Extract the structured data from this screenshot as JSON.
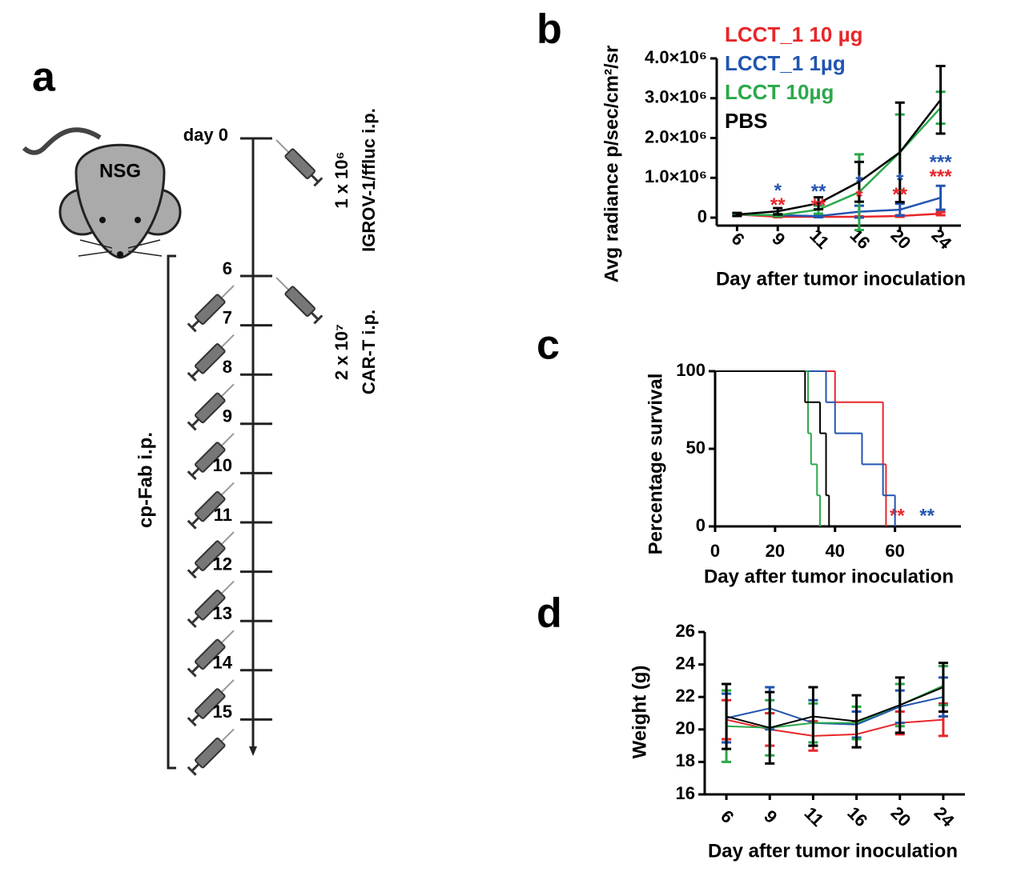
{
  "panel_a": {
    "panel_label": "a",
    "mouse_label": "NSG",
    "start_label": "day 0",
    "days": [
      "6",
      "7",
      "8",
      "9",
      "10",
      "11",
      "12",
      "13",
      "14",
      "15"
    ],
    "tumor_dose": "1 x 10⁶",
    "tumor_text": "IGROV-1/ffluc i.p.",
    "cart_dose": "2 x 10⁷",
    "cart_text": "CAR-T i.p.",
    "fab_text": "cp-Fab i.p."
  },
  "chart_data": [
    {
      "type": "line",
      "panel_label": "b",
      "y_label": "Avg radiance p/sec/cm²/sr",
      "x_label": "Day after tumor inoculation",
      "categories": [
        "6",
        "9",
        "11",
        "16",
        "20",
        "24"
      ],
      "ylim": [
        -200000,
        4000000
      ],
      "yticks": [
        0,
        {
          "value": 1000000,
          "label": "1.0×10⁶"
        },
        {
          "value": 2000000,
          "label": "2.0×10⁶"
        },
        {
          "value": 3000000,
          "label": "3.0×10⁶"
        },
        {
          "value": 4000000,
          "label": "4.0×10⁶"
        }
      ],
      "series": [
        {
          "name": "LCCT_1  10 µg",
          "color": "#e8262a",
          "values": [
            80000,
            20000,
            20000,
            20000,
            40000,
            100000
          ],
          "errors": [
            20000,
            10000,
            10000,
            10000,
            20000,
            40000
          ],
          "significance": [
            null,
            "**",
            "**",
            "*",
            "**",
            "***"
          ]
        },
        {
          "name": "LCCT_1  1µg",
          "color": "#2255b0",
          "values": [
            80000,
            60000,
            40000,
            150000,
            200000,
            500000
          ],
          "errors": [
            30000,
            30000,
            30000,
            150000,
            150000,
            300000
          ],
          "significance": [
            null,
            "*",
            "**",
            "*",
            "*",
            "***"
          ]
        },
        {
          "name": "LCCT 10µg",
          "color": "#2aa84a",
          "values": [
            80000,
            60000,
            200000,
            640000,
            1640000,
            2760000
          ],
          "errors": [
            30000,
            30000,
            100000,
            950000,
            950000,
            400000
          ]
        },
        {
          "name": "PBS",
          "color": "#000000",
          "values": [
            80000,
            160000,
            360000,
            900000,
            1640000,
            2960000
          ],
          "errors": [
            40000,
            80000,
            150000,
            500000,
            1250000,
            850000
          ]
        }
      ]
    },
    {
      "type": "step",
      "panel_label": "c",
      "y_label": "Percentage survival",
      "x_label": "Day after tumor inoculation",
      "xlim": [
        0,
        82
      ],
      "xticks": [
        0,
        20,
        40,
        60
      ],
      "ylim": [
        0,
        100
      ],
      "yticks": [
        0,
        50,
        100
      ],
      "series": [
        {
          "color": "#e8262a",
          "x": [
            0,
            40,
            56,
            57
          ],
          "values": [
            100,
            80,
            40,
            0
          ],
          "significance": "**"
        },
        {
          "color": "#2255b0",
          "x": [
            0,
            37,
            40,
            49,
            56,
            60
          ],
          "values": [
            100,
            80,
            60,
            40,
            20,
            0
          ],
          "significance": "**"
        },
        {
          "color": "#2aa84a",
          "x": [
            0,
            31,
            32,
            34,
            35
          ],
          "values": [
            100,
            60,
            40,
            20,
            0
          ]
        },
        {
          "color": "#000000",
          "x": [
            0,
            30,
            35,
            37,
            38
          ],
          "values": [
            100,
            80,
            60,
            20,
            0
          ]
        }
      ]
    },
    {
      "type": "line",
      "panel_label": "d",
      "y_label": "Weight (g)",
      "x_label": "Day after tumor inoculation",
      "categories": [
        "6",
        "9",
        "11",
        "16",
        "20",
        "24"
      ],
      "ylim": [
        16,
        26
      ],
      "yticks": [
        16,
        18,
        20,
        22,
        24,
        26
      ],
      "series": [
        {
          "color": "#e8262a",
          "values": [
            20.6,
            20.0,
            19.6,
            19.7,
            20.4,
            20.6
          ],
          "errors": [
            1.2,
            1.0,
            0.9,
            0.8,
            0.7,
            1.0
          ]
        },
        {
          "color": "#2255b0",
          "values": [
            20.7,
            21.3,
            20.4,
            20.3,
            21.4,
            22.0
          ],
          "errors": [
            1.5,
            1.3,
            1.4,
            0.8,
            1.0,
            1.2
          ]
        },
        {
          "color": "#2aa84a",
          "values": [
            20.2,
            20.1,
            20.4,
            20.4,
            21.5,
            22.7
          ],
          "errors": [
            2.2,
            1.7,
            1.2,
            1.0,
            1.3,
            1.2
          ]
        },
        {
          "color": "#000000",
          "values": [
            20.8,
            20.1,
            20.8,
            20.5,
            21.5,
            22.6
          ],
          "errors": [
            2.0,
            2.2,
            1.8,
            1.6,
            1.7,
            1.5
          ]
        }
      ]
    }
  ]
}
